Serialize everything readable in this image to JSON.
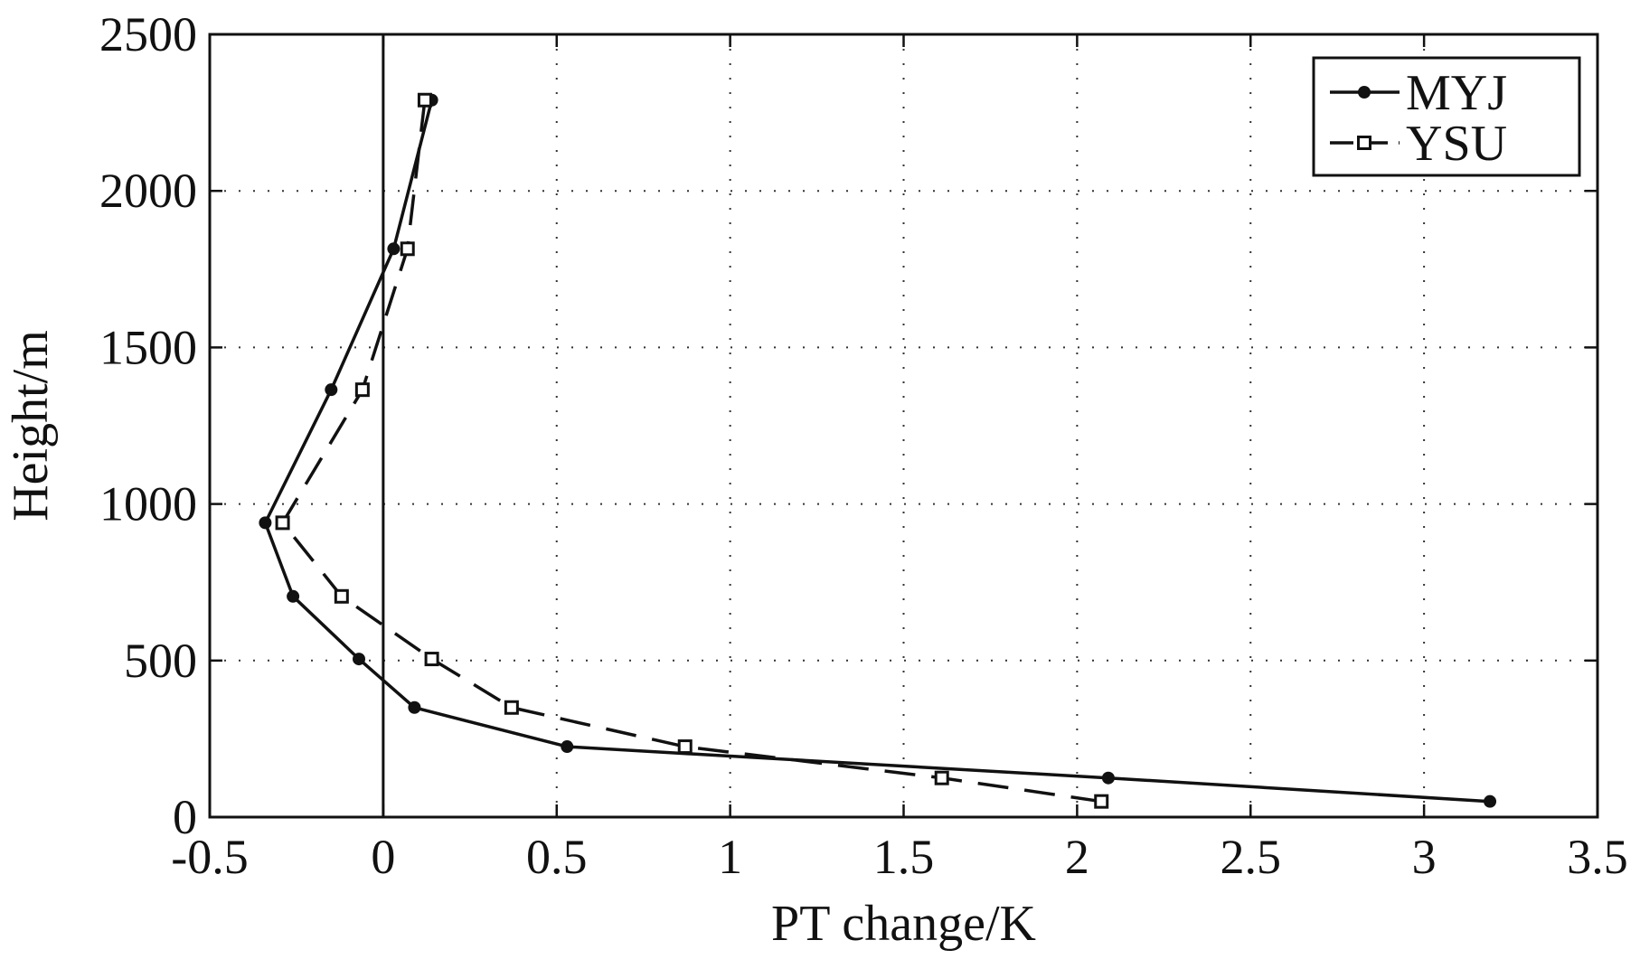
{
  "chart_data": {
    "type": "line",
    "title": "",
    "xlabel": "PT change/K",
    "ylabel": "Height/m",
    "xlim": [
      -0.5,
      3.5
    ],
    "ylim": [
      0,
      2500
    ],
    "xticks": [
      "-0.5",
      "0",
      "0.5",
      "1",
      "1.5",
      "2",
      "2.5",
      "3",
      "3.5"
    ],
    "yticks": [
      "0",
      "500",
      "1000",
      "1500",
      "2000",
      "2500"
    ],
    "grid": "dotted",
    "legend_position": "top-right",
    "reference_line_x": 0,
    "series": [
      {
        "name": "MYJ",
        "line_style": "solid",
        "marker": "filled-circle",
        "color": "#111111",
        "points": [
          {
            "x": 3.19,
            "y": 50
          },
          {
            "x": 2.09,
            "y": 125
          },
          {
            "x": 0.53,
            "y": 225
          },
          {
            "x": 0.09,
            "y": 350
          },
          {
            "x": -0.07,
            "y": 505
          },
          {
            "x": -0.26,
            "y": 705
          },
          {
            "x": -0.34,
            "y": 940
          },
          {
            "x": -0.15,
            "y": 1365
          },
          {
            "x": 0.03,
            "y": 1815
          },
          {
            "x": 0.14,
            "y": 2290
          }
        ]
      },
      {
        "name": "YSU",
        "line_style": "dashed",
        "marker": "open-square",
        "color": "#111111",
        "points": [
          {
            "x": 2.07,
            "y": 50
          },
          {
            "x": 1.61,
            "y": 125
          },
          {
            "x": 0.87,
            "y": 225
          },
          {
            "x": 0.37,
            "y": 350
          },
          {
            "x": 0.14,
            "y": 505
          },
          {
            "x": -0.12,
            "y": 705
          },
          {
            "x": -0.29,
            "y": 940
          },
          {
            "x": -0.06,
            "y": 1365
          },
          {
            "x": 0.07,
            "y": 1815
          },
          {
            "x": 0.12,
            "y": 2290
          }
        ]
      }
    ]
  }
}
